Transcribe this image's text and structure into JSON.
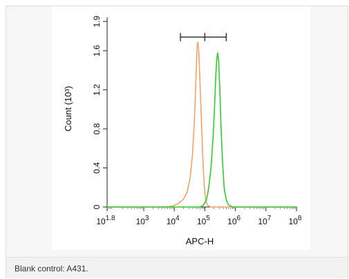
{
  "caption": "Blank control: A431.",
  "chart_data": {
    "type": "line",
    "xlabel": "APC-H",
    "ylabel": "Count (10³)",
    "x_scale": "log10",
    "xlim": [
      1.8,
      8
    ],
    "ylim": [
      0,
      1.9
    ],
    "x_ticks": [
      {
        "v": 1.8,
        "base": "10",
        "exp": "1.8"
      },
      {
        "v": 3,
        "base": "10",
        "exp": "3"
      },
      {
        "v": 4,
        "base": "10",
        "exp": "4"
      },
      {
        "v": 5,
        "base": "10",
        "exp": "5"
      },
      {
        "v": 6,
        "base": "10",
        "exp": "6"
      },
      {
        "v": 7,
        "base": "10",
        "exp": "7"
      },
      {
        "v": 8,
        "base": "10",
        "exp": "8"
      }
    ],
    "y_ticks": [
      {
        "v": 0,
        "label": "0"
      },
      {
        "v": 0.4,
        "label": "0.4"
      },
      {
        "v": 0.8,
        "label": "0.8"
      },
      {
        "v": 1.2,
        "label": "1.2"
      },
      {
        "v": 1.6,
        "label": "1.6"
      },
      {
        "v": 1.9,
        "label": "1.9"
      }
    ],
    "gate": {
      "left": 4.2,
      "mid": 5.0,
      "right": 5.7,
      "y": 1.74
    },
    "series": [
      {
        "color": "#f0a36a",
        "points": [
          [
            1.8,
            0
          ],
          [
            3.7,
            0
          ],
          [
            3.95,
            0.01
          ],
          [
            4.15,
            0.04
          ],
          [
            4.3,
            0.08
          ],
          [
            4.42,
            0.15
          ],
          [
            4.52,
            0.3
          ],
          [
            4.6,
            0.55
          ],
          [
            4.66,
            0.9
          ],
          [
            4.7,
            1.25
          ],
          [
            4.73,
            1.52
          ],
          [
            4.75,
            1.66
          ],
          [
            4.77,
            1.69
          ],
          [
            4.8,
            1.6
          ],
          [
            4.84,
            1.3
          ],
          [
            4.88,
            0.95
          ],
          [
            4.92,
            0.6
          ],
          [
            4.96,
            0.32
          ],
          [
            5.0,
            0.14
          ],
          [
            5.05,
            0.04
          ],
          [
            5.12,
            0.01
          ],
          [
            5.2,
            0
          ],
          [
            8,
            0
          ]
        ]
      },
      {
        "color": "#2ecc2e",
        "points": [
          [
            1.8,
            0
          ],
          [
            4.85,
            0
          ],
          [
            4.95,
            0.02
          ],
          [
            5.05,
            0.07
          ],
          [
            5.12,
            0.18
          ],
          [
            5.2,
            0.4
          ],
          [
            5.27,
            0.72
          ],
          [
            5.32,
            1.05
          ],
          [
            5.36,
            1.35
          ],
          [
            5.39,
            1.52
          ],
          [
            5.42,
            1.58
          ],
          [
            5.45,
            1.5
          ],
          [
            5.49,
            1.2
          ],
          [
            5.53,
            0.82
          ],
          [
            5.58,
            0.45
          ],
          [
            5.63,
            0.2
          ],
          [
            5.7,
            0.07
          ],
          [
            5.78,
            0.02
          ],
          [
            5.9,
            0
          ],
          [
            8,
            0
          ]
        ]
      }
    ]
  }
}
